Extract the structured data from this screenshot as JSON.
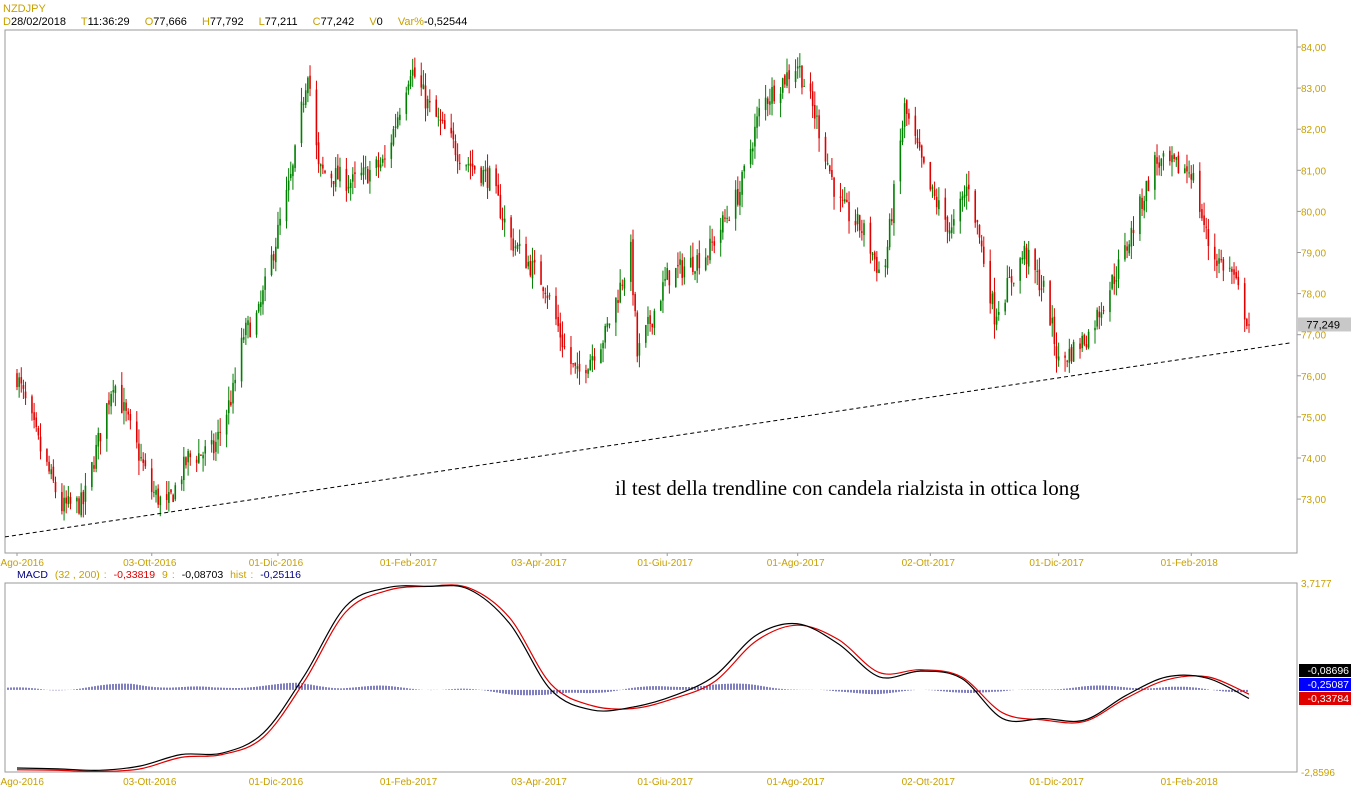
{
  "symbol": "NZDJPY",
  "info": {
    "date_key": "D",
    "date": "28/02/2018",
    "time_key": "T",
    "time": "11:36:29",
    "open_key": "O",
    "open": "77,666",
    "high_key": "H",
    "high": "77,792",
    "low_key": "L",
    "low": "77,211",
    "close_key": "C",
    "close": "77,242",
    "vol_key": "V",
    "vol": "0",
    "var_key": "Var%",
    "var": "-0,52544"
  },
  "annotation": "il test della trendline con candela rialzista in ottica long",
  "colors": {
    "up": "#008000",
    "down": "#e00000",
    "axis_text": "#c8a000",
    "macd_line": "#000000",
    "signal_line": "#e00000",
    "hist": "#000080",
    "price_tag_bg": "#c8c8c8"
  },
  "chart_data": [
    {
      "type": "candlestick",
      "title": "NZDJPY",
      "timeframe": "daily",
      "ylim": [
        72.0,
        84.2
      ],
      "y_ticks": [
        "84,00",
        "83,00",
        "82,00",
        "81,00",
        "80,00",
        "79,00",
        "78,00",
        "77,00",
        "76,00",
        "75,00",
        "74,00",
        "73,00"
      ],
      "x_ticks": [
        "01-Ago-2016",
        "03-Ott-2016",
        "01-Dic-2016",
        "01-Feb-2017",
        "03-Apr-2017",
        "01-Giu-2017",
        "01-Ago-2017",
        "02-Ott-2017",
        "01-Dic-2017",
        "01-Feb-2018"
      ],
      "last_price_label": "77,249",
      "trendline": {
        "style": "dashed",
        "points": [
          [
            "start",
            72.08
          ],
          [
            "end",
            76.8
          ]
        ]
      },
      "close_path_keypoints": [
        [
          "01-Ago-2016",
          76.0
        ],
        [
          "12-Ago-2016",
          74.2
        ],
        [
          "22-Ago-2016",
          72.8
        ],
        [
          "01-Set-2016",
          72.9
        ],
        [
          "15-Set-2016",
          75.9
        ],
        [
          "03-Ott-2016",
          73.2
        ],
        [
          "10-Ott-2016",
          72.8
        ],
        [
          "20-Ott-2016",
          74.0
        ],
        [
          "01-Nov-2016",
          74.2
        ],
        [
          "10-Nov-2016",
          75.6
        ],
        [
          "15-Nov-2016",
          77.0
        ],
        [
          "22-Nov-2016",
          77.5
        ],
        [
          "01-Dic-2016",
          79.5
        ],
        [
          "08-Dic-2016",
          81.0
        ],
        [
          "15-Dic-2016",
          83.5
        ],
        [
          "20-Dic-2016",
          81.0
        ],
        [
          "05-Gen-2017",
          80.7
        ],
        [
          "20-Gen-2017",
          81.2
        ],
        [
          "01-Feb-2017",
          83.5
        ],
        [
          "10-Feb-2017",
          82.5
        ],
        [
          "25-Feb-2017",
          81.3
        ],
        [
          "10-Mar-2017",
          80.8
        ],
        [
          "20-Mar-2017",
          79.3
        ],
        [
          "05-Apr-2017",
          78.2
        ],
        [
          "15-Apr-2017",
          76.5
        ],
        [
          "20-Apr-2017",
          76.0
        ],
        [
          "03-Mag-2017",
          77.0
        ],
        [
          "15-Mag-2017",
          79.0
        ],
        [
          "18-Mag-2017",
          76.5
        ],
        [
          "01-Giu-2017",
          78.4
        ],
        [
          "20-Giu-2017",
          79.0
        ],
        [
          "05-Lug-2017",
          80.5
        ],
        [
          "15-Lug-2017",
          82.6
        ],
        [
          "01-Ago-2017",
          83.6
        ],
        [
          "10-Ago-2017",
          82.2
        ],
        [
          "20-Ago-2017",
          80.2
        ],
        [
          "01-Set-2017",
          79.5
        ],
        [
          "10-Set-2017",
          78.3
        ],
        [
          "20-Set-2017",
          82.5
        ],
        [
          "02-Ott-2017",
          80.5
        ],
        [
          "12-Ott-2017",
          79.5
        ],
        [
          "20-Ott-2017",
          80.7
        ],
        [
          "01-Nov-2017",
          77.5
        ],
        [
          "15-Nov-2017",
          79.0
        ],
        [
          "25-Nov-2017",
          78.0
        ],
        [
          "01-Dic-2017",
          76.3
        ],
        [
          "15-Dic-2017",
          77.0
        ],
        [
          "01-Gen-2018",
          79.0
        ],
        [
          "15-Gen-2018",
          81.2
        ],
        [
          "01-Feb-2018",
          81.0
        ],
        [
          "10-Feb-2018",
          79.0
        ],
        [
          "20-Feb-2018",
          78.5
        ],
        [
          "28-Feb-2018",
          77.25
        ]
      ]
    },
    {
      "type": "line",
      "title": "MACD",
      "params": "(32 , 200)",
      "macd_value": "-0,33819",
      "signal_period": "9",
      "signal_value": "-0,08703",
      "hist_label": "hist",
      "hist_value": "-0,25116",
      "ylim": [
        -2.8596,
        3.7177
      ],
      "y_ticks": [
        "3,7177",
        "-2,8596"
      ],
      "right_tags": [
        "-0,08696",
        "-0,25087",
        "-0,33784"
      ],
      "x_ticks": [
        "01-Ago-2016",
        "03-Ott-2016",
        "01-Dic-2016",
        "01-Feb-2017",
        "03-Apr-2017",
        "01-Giu-2017",
        "01-Ago-2017",
        "02-Ott-2017",
        "01-Dic-2017",
        "01-Feb-2018"
      ],
      "series": [
        {
          "name": "MACD",
          "keypoints": [
            [
              -2.72,
              -2.75,
              -2.8,
              -2.65,
              -2.25,
              -2.2,
              -1.5,
              0.5,
              2.9,
              3.55,
              3.6,
              3.5,
              2.3,
              0.0,
              -0.7,
              -0.6,
              -0.2,
              0.5,
              1.9,
              2.3,
              1.6,
              0.45,
              0.65,
              0.4,
              -1.0,
              -1.0,
              -1.05,
              -0.2,
              0.45,
              0.4,
              -0.3
            ]
          ]
        },
        {
          "name": "Signal",
          "keypoints": [
            [
              -2.78,
              -2.8,
              -2.84,
              -2.75,
              -2.35,
              -2.25,
              -1.65,
              0.3,
              2.7,
              3.45,
              3.6,
              3.55,
              2.5,
              0.2,
              -0.55,
              -0.65,
              -0.3,
              0.3,
              1.7,
              2.25,
              1.75,
              0.6,
              0.7,
              0.45,
              -0.8,
              -1.05,
              -1.1,
              -0.3,
              0.35,
              0.45,
              -0.15
            ]
          ]
        }
      ],
      "hist_keypoints": [
        0.05,
        0.0,
        0.1,
        0.2,
        0.1,
        0.05,
        0.15,
        0.2,
        0.1,
        0.1,
        0.05,
        0.0,
        -0.1,
        -0.2,
        -0.1,
        0.05,
        0.1,
        0.2,
        0.15,
        0.05,
        -0.1,
        -0.1,
        -0.05,
        -0.05,
        -0.1,
        0.05,
        0.1,
        0.1,
        0.1,
        0.0,
        -0.05
      ]
    }
  ]
}
